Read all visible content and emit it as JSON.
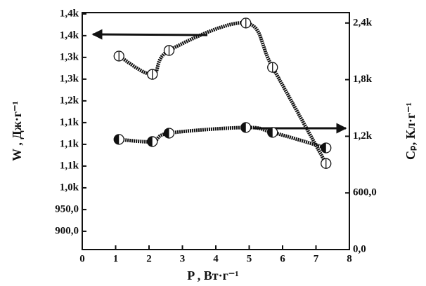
{
  "chart_data": {
    "type": "line",
    "xlabel": "P , Вт·г⁻¹",
    "ylabel": "W , Дж·г⁻¹",
    "y2label": "Cₚ, Кл·г⁻¹",
    "xlim": [
      0,
      8
    ],
    "xticks": [
      0,
      1,
      2,
      3,
      4,
      5,
      6,
      7,
      8
    ],
    "ylim": [
      858,
      1403
    ],
    "yticks": [
      {
        "value": 900,
        "label": "900,0"
      },
      {
        "value": 950,
        "label": "950,0"
      },
      {
        "value": 1000,
        "label": "1,0k"
      },
      {
        "value": 1050,
        "label": "1,1k"
      },
      {
        "value": 1100,
        "label": "1,1k"
      },
      {
        "value": 1150,
        "label": "1,1k"
      },
      {
        "value": 1200,
        "label": "1,2k"
      },
      {
        "value": 1250,
        "label": "1,3k"
      },
      {
        "value": 1300,
        "label": "1,3k"
      },
      {
        "value": 1350,
        "label": "1,4k"
      },
      {
        "value": 1400,
        "label": "1,4k"
      }
    ],
    "y2lim": [
      0,
      2510
    ],
    "y2ticks": [
      {
        "value": 0,
        "label": "0,0"
      },
      {
        "value": 600,
        "label": "600,0"
      },
      {
        "value": 1200,
        "label": "1,2k"
      },
      {
        "value": 1800,
        "label": "1,8k"
      },
      {
        "value": 2400,
        "label": "2,4k"
      }
    ],
    "series": [
      {
        "color": "#111111",
        "marker": "circle-open",
        "x": [
          1.1,
          2.1,
          2.6,
          4.9,
          5.7,
          7.3
        ],
        "values": [
          1303,
          1261,
          1316,
          1379,
          1277,
          1056
        ]
      },
      {
        "color": "#111111",
        "marker": "circle-half",
        "axis": "y2",
        "x": [
          1.1,
          2.1,
          2.6,
          4.9,
          5.7,
          7.3
        ],
        "values": [
          1167,
          1144,
          1233,
          1293,
          1241,
          1077
        ]
      }
    ]
  }
}
